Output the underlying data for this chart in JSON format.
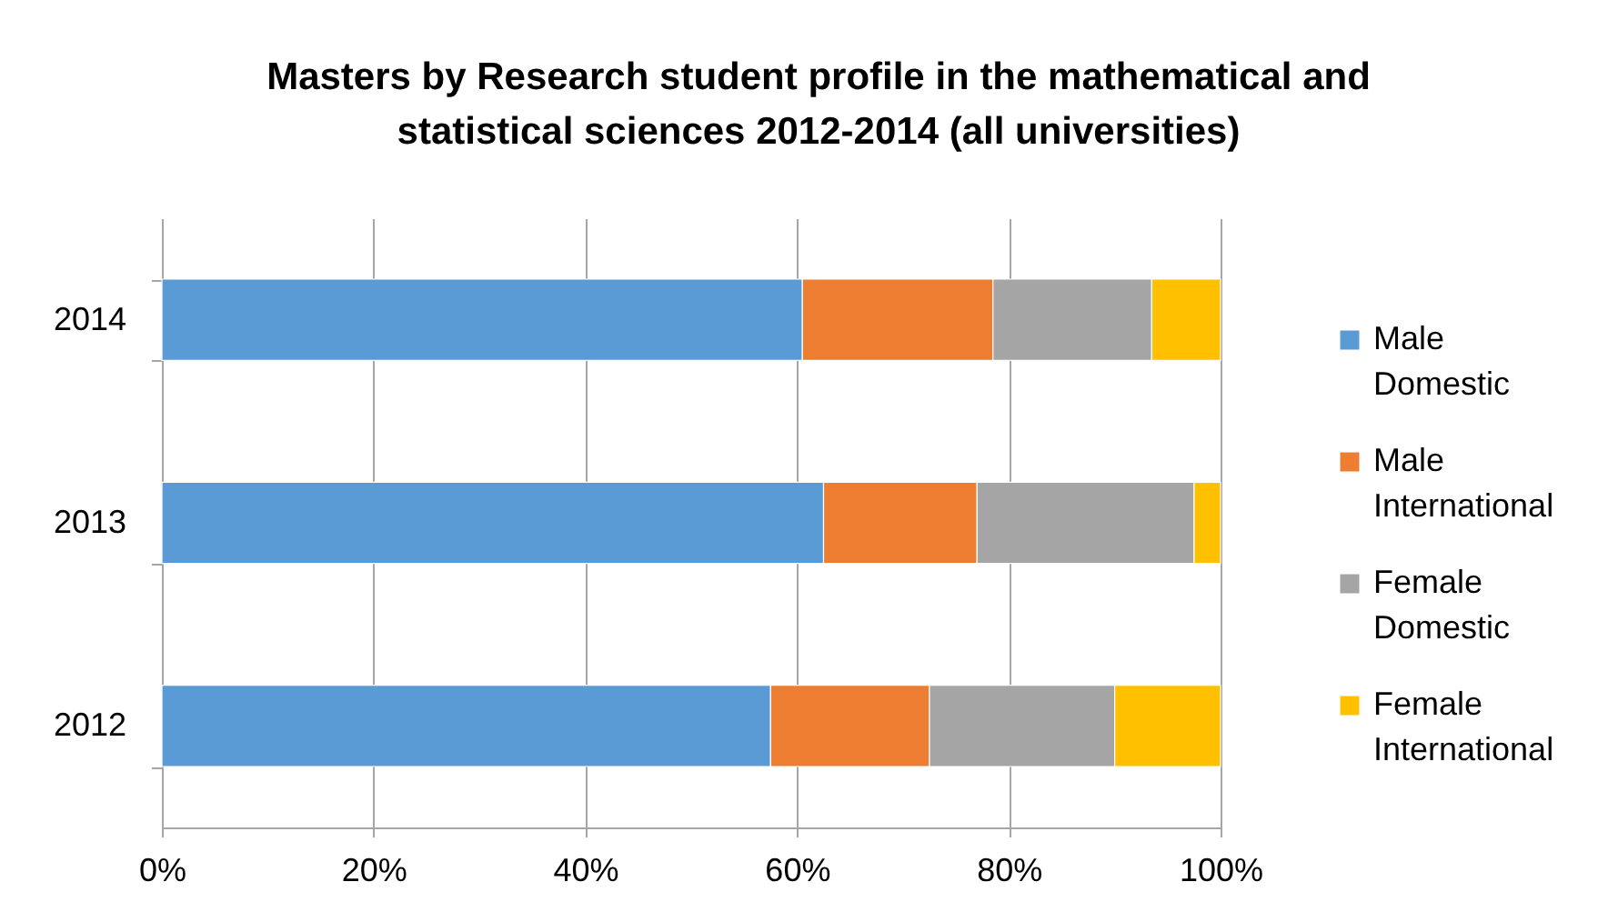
{
  "chart_data": {
    "type": "bar",
    "orientation": "horizontal",
    "stacked": true,
    "title": "Masters by Research student profile in the mathematical and statistical sciences 2012-2014 (all universities)",
    "categories": [
      "2014",
      "2013",
      "2012"
    ],
    "series": [
      {
        "name": "Male Domestic",
        "color": "#5b9bd5",
        "values": [
          60.5,
          62.5,
          57.5
        ]
      },
      {
        "name": "Male International",
        "color": "#ed7d31",
        "values": [
          18,
          14.5,
          15
        ]
      },
      {
        "name": "Female Domestic",
        "color": "#a5a5a5",
        "values": [
          15,
          20.5,
          17.5
        ]
      },
      {
        "name": "Female International",
        "color": "#ffc000",
        "values": [
          6.5,
          2.5,
          10
        ]
      }
    ],
    "xlim": [
      0,
      100
    ],
    "xticks": [
      {
        "value": 0,
        "label": "0%"
      },
      {
        "value": 20,
        "label": "20%"
      },
      {
        "value": 40,
        "label": "40%"
      },
      {
        "value": 60,
        "label": "60%"
      },
      {
        "value": 80,
        "label": "80%"
      },
      {
        "value": 100,
        "label": "100%"
      }
    ],
    "grid": "x",
    "legend": "right"
  }
}
